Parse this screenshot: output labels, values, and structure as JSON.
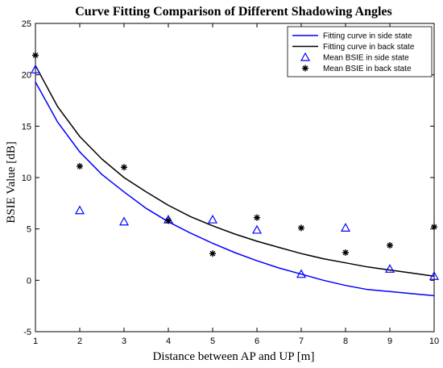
{
  "chart_data": {
    "type": "scatter",
    "title": "Curve Fitting Comparison of Different Shadowing Angles",
    "xlabel": "Distance between AP and UP [m]",
    "ylabel": "BSIE Value [dB]",
    "xlim": [
      1,
      10
    ],
    "ylim": [
      -5,
      25
    ],
    "xticks": [
      "1",
      "2",
      "3",
      "4",
      "5",
      "6",
      "7",
      "8",
      "9",
      "10"
    ],
    "yticks": [
      "-5",
      "0",
      "5",
      "10",
      "15",
      "20",
      "25"
    ],
    "grid": false,
    "legend_position": "top-right",
    "series": [
      {
        "name": "Fitting curve in side state",
        "kind": "line",
        "color": "#0000ff",
        "x": [
          1,
          1.5,
          2,
          2.5,
          3,
          3.5,
          4,
          4.5,
          5,
          5.5,
          6,
          6.5,
          7,
          7.5,
          8,
          8.5,
          9,
          9.5,
          10
        ],
        "y": [
          19.3,
          15.4,
          12.5,
          10.3,
          8.6,
          7.0,
          5.7,
          4.6,
          3.6,
          2.7,
          1.9,
          1.2,
          0.6,
          0.0,
          -0.5,
          -0.9,
          -1.1,
          -1.3,
          -1.5
        ]
      },
      {
        "name": "Fitting curve in back state",
        "kind": "line",
        "color": "#000000",
        "x": [
          1,
          1.5,
          2,
          2.5,
          3,
          3.5,
          4,
          4.5,
          5,
          5.5,
          6,
          6.5,
          7,
          7.5,
          8,
          8.5,
          9,
          9.5,
          10
        ],
        "y": [
          20.9,
          16.9,
          14.0,
          11.8,
          10.0,
          8.6,
          7.3,
          6.2,
          5.3,
          4.5,
          3.8,
          3.2,
          2.6,
          2.1,
          1.7,
          1.3,
          1.0,
          0.7,
          0.4
        ]
      },
      {
        "name": "Mean BSIE in side state",
        "kind": "markers",
        "marker": "triangle",
        "color": "#0000ff",
        "x": [
          1,
          2,
          3,
          4,
          5,
          6,
          7,
          8,
          9,
          10
        ],
        "y": [
          20.5,
          6.8,
          5.7,
          5.9,
          5.9,
          4.9,
          0.6,
          5.1,
          1.1,
          0.4
        ]
      },
      {
        "name": "Mean BSIE in back state",
        "kind": "markers",
        "marker": "asterisk",
        "color": "#000000",
        "x": [
          1,
          2,
          3,
          4,
          5,
          6,
          7,
          8,
          9,
          10
        ],
        "y": [
          21.9,
          11.1,
          11.0,
          5.8,
          2.6,
          6.1,
          5.1,
          2.7,
          3.4,
          5.2
        ]
      }
    ]
  }
}
